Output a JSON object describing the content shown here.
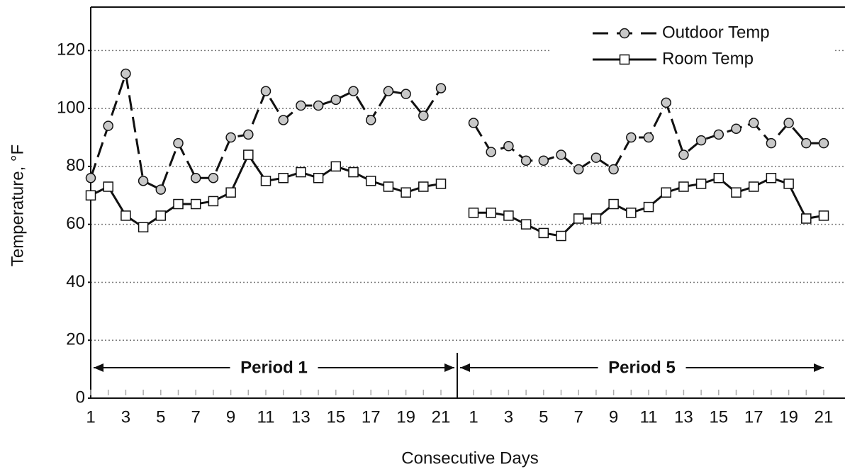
{
  "chart_data": {
    "type": "line",
    "ylabel": "Temperature, °F",
    "xlabel": "Consecutive Days",
    "ylim": [
      0,
      135
    ],
    "yticks": [
      0,
      20,
      40,
      60,
      80,
      100,
      120
    ],
    "grid": true,
    "legend": "upper right",
    "groups": [
      {
        "label": "Period 1",
        "categories": [
          1,
          null,
          3,
          null,
          5,
          null,
          7,
          null,
          9,
          null,
          11,
          null,
          13,
          null,
          15,
          null,
          17,
          null,
          19,
          null,
          21
        ]
      },
      {
        "label": "Period 5",
        "categories": [
          1,
          null,
          3,
          null,
          5,
          null,
          7,
          null,
          9,
          null,
          11,
          null,
          13,
          null,
          15,
          null,
          17,
          null,
          19,
          null,
          21
        ]
      }
    ],
    "series": [
      {
        "name": "Outdoor Temp",
        "color": "#111111",
        "marker": "circle",
        "dashed": true,
        "values": [
          [
            76,
            94,
            112,
            75,
            72,
            88,
            76,
            76,
            90,
            91,
            106,
            96,
            101,
            101,
            103,
            106,
            96,
            106,
            105,
            97.5,
            107
          ],
          [
            95,
            85,
            87,
            82,
            82,
            84,
            79,
            83,
            79,
            90,
            90,
            102,
            84,
            89,
            91,
            93,
            95,
            88,
            95,
            88,
            88
          ]
        ]
      },
      {
        "name": "Room Temp",
        "color": "#111111",
        "marker": "square",
        "dashed": false,
        "values": [
          [
            70,
            73,
            63,
            59,
            63,
            67,
            67,
            68,
            71,
            84,
            75,
            76,
            78,
            76,
            80,
            78,
            75,
            73,
            71,
            73,
            74
          ],
          [
            64,
            64,
            63,
            60,
            57,
            56,
            62,
            62,
            67,
            64,
            66,
            71,
            73,
            74,
            76,
            71,
            73,
            76,
            74,
            62,
            63
          ]
        ]
      }
    ]
  }
}
